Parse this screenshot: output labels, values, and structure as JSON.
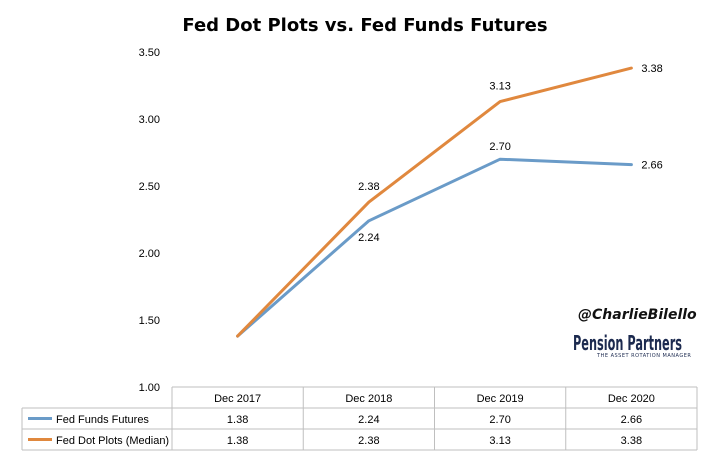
{
  "chart_data": {
    "type": "line",
    "title": "Fed Dot Plots vs. Fed Funds Futures",
    "xlabel": "",
    "ylabel": "",
    "categories": [
      "Dec 2017",
      "Dec 2018",
      "Dec 2019",
      "Dec 2020"
    ],
    "ylim": [
      1.0,
      3.5
    ],
    "yticks": [
      "1.00",
      "1.50",
      "2.00",
      "2.50",
      "3.00",
      "3.50"
    ],
    "grid": false,
    "legend": "data-table-below",
    "series": [
      {
        "name": "Fed Funds Futures",
        "values": [
          1.38,
          2.24,
          2.7,
          2.66
        ],
        "labels": [
          "",
          "2.24",
          "2.70",
          "2.66"
        ],
        "table_values": [
          "1.38",
          "2.24",
          "2.70",
          "2.66"
        ],
        "color": "#6a9bc8"
      },
      {
        "name": "Fed Dot Plots (Median)",
        "values": [
          1.38,
          2.38,
          3.13,
          3.38
        ],
        "labels": [
          "",
          "2.38",
          "3.13",
          "3.38"
        ],
        "table_values": [
          "1.38",
          "2.38",
          "3.13",
          "3.38"
        ],
        "color": "#e0883e"
      }
    ]
  },
  "watermark": {
    "handle": "@CharlieBilello",
    "logo_text": "Pension Partners",
    "logo_tagline": "THE ASSET ROTATION MANAGER"
  }
}
